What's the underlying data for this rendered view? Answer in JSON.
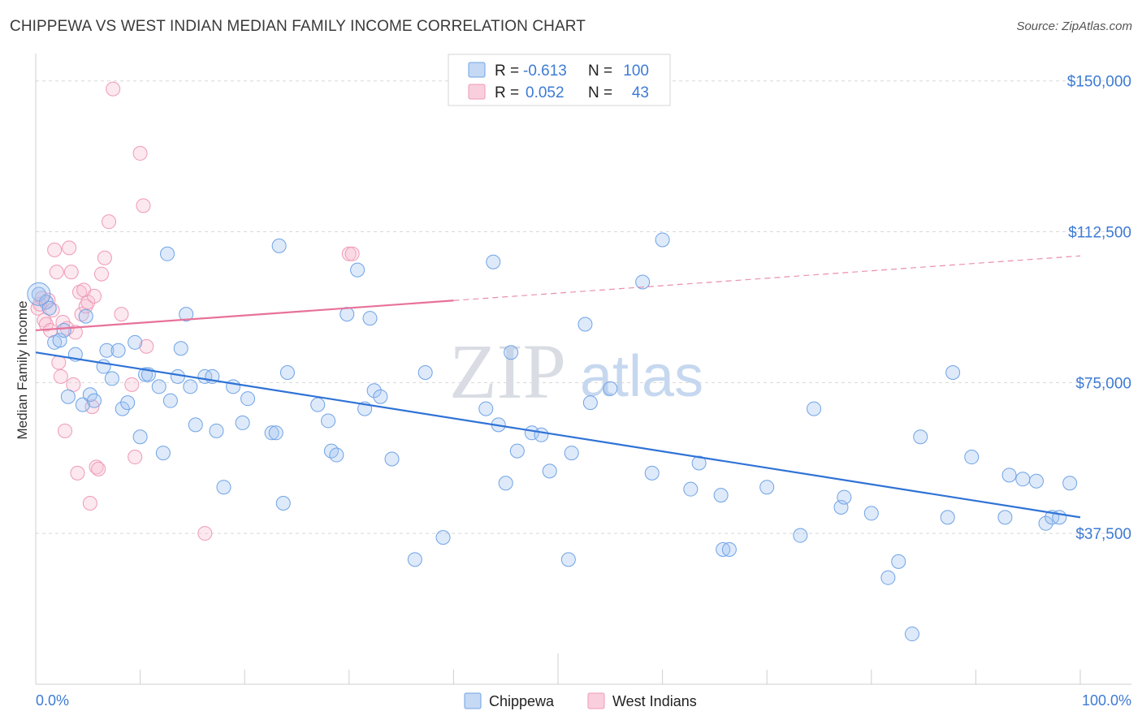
{
  "title": "CHIPPEWA VS WEST INDIAN MEDIAN FAMILY INCOME CORRELATION CHART",
  "source": "Source: ZipAtlas.com",
  "watermark": {
    "part1": "ZIP",
    "part2": "atlas"
  },
  "colors": {
    "chippewa": "#6fa3e6",
    "chippewa_line": "#2f72d6",
    "west_indians": "#ef9ab5",
    "west_indians_line": "#e7729a",
    "axis_text": "#3d7bd4",
    "grid": "#d8d8d8"
  },
  "legend": {
    "rows": [
      {
        "r_label": "R =",
        "r_value": "-0.613",
        "n_label": "N =",
        "n_value": "100"
      },
      {
        "r_label": "R =",
        "r_value": "0.052",
        "n_label": "N =",
        "n_value": "43"
      }
    ]
  },
  "bottom_legend": [
    "Chippewa",
    "West Indians"
  ],
  "chart_data": {
    "type": "scatter",
    "title": "CHIPPEWA VS WEST INDIAN MEDIAN FAMILY INCOME CORRELATION CHART",
    "xlabel": "",
    "ylabel": "Median Family Income",
    "xlim": [
      0,
      100
    ],
    "ylim": [
      0,
      156000
    ],
    "x_tick_labels": [
      "0.0%",
      "100.0%"
    ],
    "y_ticks": [
      37500,
      75000,
      112500,
      150000
    ],
    "y_tick_labels": [
      "$37,500",
      "$75,000",
      "$112,500",
      "$150,000"
    ],
    "grid": true,
    "legend_position": "top-center",
    "series": [
      {
        "name": "Chippewa",
        "r": -0.613,
        "n": 100,
        "trend": {
          "x": [
            0,
            100
          ],
          "y": [
            82500,
            41500
          ],
          "dashed_from": null
        },
        "points": [
          [
            0.3,
            97000
          ],
          [
            1.0,
            95000
          ],
          [
            1.3,
            93500
          ],
          [
            1.8,
            85000
          ],
          [
            2.3,
            85500
          ],
          [
            2.7,
            88000
          ],
          [
            3.1,
            71500
          ],
          [
            3.8,
            82000
          ],
          [
            4.5,
            69500
          ],
          [
            4.8,
            91500
          ],
          [
            5.2,
            72000
          ],
          [
            5.6,
            70500
          ],
          [
            6.5,
            79000
          ],
          [
            6.8,
            83000
          ],
          [
            7.3,
            76000
          ],
          [
            7.9,
            83000
          ],
          [
            8.3,
            68500
          ],
          [
            8.8,
            70000
          ],
          [
            9.5,
            85000
          ],
          [
            10.0,
            61500
          ],
          [
            10.5,
            77000
          ],
          [
            10.8,
            77000
          ],
          [
            11.8,
            74000
          ],
          [
            12.2,
            57500
          ],
          [
            12.6,
            107000
          ],
          [
            12.9,
            70500
          ],
          [
            13.6,
            76500
          ],
          [
            13.9,
            83500
          ],
          [
            14.4,
            92000
          ],
          [
            14.8,
            74000
          ],
          [
            15.3,
            64500
          ],
          [
            16.2,
            76500
          ],
          [
            16.9,
            76500
          ],
          [
            17.3,
            63000
          ],
          [
            18.0,
            49000
          ],
          [
            18.9,
            74000
          ],
          [
            19.8,
            65000
          ],
          [
            20.3,
            71000
          ],
          [
            22.6,
            62500
          ],
          [
            23.0,
            62500
          ],
          [
            23.3,
            109000
          ],
          [
            23.7,
            45000
          ],
          [
            24.1,
            77500
          ],
          [
            27.0,
            69500
          ],
          [
            28.0,
            65500
          ],
          [
            28.3,
            58000
          ],
          [
            28.8,
            57000
          ],
          [
            29.8,
            92000
          ],
          [
            30.8,
            103000
          ],
          [
            31.5,
            68500
          ],
          [
            32.0,
            91000
          ],
          [
            32.4,
            73000
          ],
          [
            33.0,
            71500
          ],
          [
            34.1,
            56000
          ],
          [
            36.3,
            31000
          ],
          [
            37.3,
            77500
          ],
          [
            39.0,
            36500
          ],
          [
            43.1,
            68500
          ],
          [
            43.8,
            105000
          ],
          [
            44.3,
            64500
          ],
          [
            45.0,
            50000
          ],
          [
            45.5,
            82500
          ],
          [
            46.1,
            58000
          ],
          [
            47.5,
            62500
          ],
          [
            48.4,
            62000
          ],
          [
            49.2,
            53000
          ],
          [
            51.0,
            31000
          ],
          [
            51.3,
            57500
          ],
          [
            52.6,
            89500
          ],
          [
            53.1,
            70000
          ],
          [
            55.0,
            73500
          ],
          [
            58.1,
            100000
          ],
          [
            59.0,
            52500
          ],
          [
            60.0,
            110500
          ],
          [
            62.7,
            48500
          ],
          [
            63.5,
            55000
          ],
          [
            65.6,
            47000
          ],
          [
            65.8,
            33500
          ],
          [
            66.4,
            33500
          ],
          [
            70.0,
            49000
          ],
          [
            73.2,
            37000
          ],
          [
            74.5,
            68500
          ],
          [
            77.1,
            44000
          ],
          [
            77.4,
            46500
          ],
          [
            80.0,
            42500
          ],
          [
            81.6,
            26500
          ],
          [
            82.6,
            30500
          ],
          [
            83.9,
            12500
          ],
          [
            84.7,
            61500
          ],
          [
            87.3,
            41500
          ],
          [
            87.8,
            77500
          ],
          [
            89.6,
            56500
          ],
          [
            92.8,
            41500
          ],
          [
            93.2,
            52000
          ],
          [
            94.5,
            51000
          ],
          [
            95.8,
            50500
          ],
          [
            96.7,
            40000
          ],
          [
            97.3,
            41500
          ],
          [
            98.0,
            41500
          ],
          [
            99.0,
            50000
          ]
        ]
      },
      {
        "name": "West Indians",
        "r": 0.052,
        "n": 43,
        "trend": {
          "x": [
            0,
            100
          ],
          "y": [
            88000,
            106500
          ],
          "dashed_from": 40
        },
        "points": [
          [
            0.2,
            93500
          ],
          [
            0.4,
            94500
          ],
          [
            0.6,
            96000
          ],
          [
            0.8,
            90500
          ],
          [
            1.0,
            89500
          ],
          [
            1.2,
            95500
          ],
          [
            1.4,
            88000
          ],
          [
            1.6,
            93000
          ],
          [
            1.8,
            108000
          ],
          [
            2.0,
            102500
          ],
          [
            2.2,
            80000
          ],
          [
            2.4,
            76500
          ],
          [
            2.6,
            90000
          ],
          [
            2.8,
            63000
          ],
          [
            3.0,
            88500
          ],
          [
            3.2,
            108500
          ],
          [
            3.4,
            102500
          ],
          [
            3.6,
            74500
          ],
          [
            3.8,
            87500
          ],
          [
            4.0,
            52500
          ],
          [
            4.2,
            97500
          ],
          [
            4.4,
            92000
          ],
          [
            4.6,
            98000
          ],
          [
            4.8,
            94000
          ],
          [
            5.0,
            95000
          ],
          [
            5.2,
            45000
          ],
          [
            5.4,
            69000
          ],
          [
            5.6,
            96500
          ],
          [
            5.8,
            54000
          ],
          [
            6.0,
            53500
          ],
          [
            6.3,
            102000
          ],
          [
            6.6,
            106000
          ],
          [
            7.0,
            115000
          ],
          [
            7.4,
            148000
          ],
          [
            8.2,
            92000
          ],
          [
            9.2,
            74500
          ],
          [
            9.5,
            56500
          ],
          [
            10.0,
            132000
          ],
          [
            10.3,
            119000
          ],
          [
            10.6,
            84000
          ],
          [
            16.2,
            37500
          ],
          [
            30.0,
            107000
          ],
          [
            30.3,
            107000
          ]
        ]
      }
    ]
  }
}
